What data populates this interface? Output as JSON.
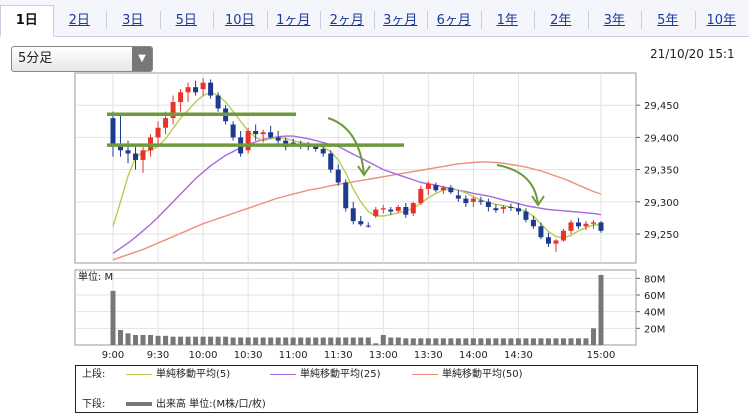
{
  "tabs": [
    "1日",
    "2日",
    "3日",
    "5日",
    "10日",
    "1ヶ月",
    "2ヶ月",
    "3ヶ月",
    "6ヶ月",
    "1年",
    "2年",
    "3年",
    "5年",
    "10年"
  ],
  "active_tab": "1日",
  "interval_select": {
    "value": "5分足",
    "arrow": "▼"
  },
  "timestamp": "21/10/20 15:1",
  "colors": {
    "up": "#e8332c",
    "down": "#1d3a8f",
    "ma5": "#b6cc52",
    "ma25": "#a869e0",
    "ma50": "#ec8f78",
    "volume": "#777777",
    "annotation_lines": "#6e9a3c",
    "annotation_arrows": "#6e9a3c"
  },
  "chart_data": [
    {
      "type": "candlestick",
      "ylim": [
        29205,
        29500
      ],
      "y_ticks": [
        "29,450",
        "29,400",
        "29,350",
        "29,300",
        "29,250"
      ],
      "x_tick_labels": [
        "9:00",
        "9:30",
        "10:00",
        "10:30",
        "11:00",
        "11:30",
        "13:00",
        "13:30",
        "14:00",
        "14:30",
        "15:00"
      ],
      "candles": [
        [
          29430,
          29440,
          29370,
          29390
        ],
        [
          29390,
          29435,
          29370,
          29380
        ],
        [
          29380,
          29395,
          29360,
          29375
        ],
        [
          29375,
          29390,
          29350,
          29365
        ],
        [
          29365,
          29385,
          29345,
          29380
        ],
        [
          29380,
          29405,
          29370,
          29400
        ],
        [
          29400,
          29425,
          29390,
          29415
        ],
        [
          29415,
          29440,
          29405,
          29430
        ],
        [
          29430,
          29465,
          29420,
          29455
        ],
        [
          29455,
          29475,
          29440,
          29470
        ],
        [
          29470,
          29485,
          29455,
          29478
        ],
        [
          29478,
          29488,
          29465,
          29470
        ],
        [
          29475,
          29492,
          29465,
          29485
        ],
        [
          29485,
          29490,
          29460,
          29465
        ],
        [
          29465,
          29470,
          29440,
          29445
        ],
        [
          29445,
          29450,
          29420,
          29425
        ],
        [
          29420,
          29425,
          29395,
          29400
        ],
        [
          29400,
          29410,
          29370,
          29375
        ],
        [
          29380,
          29415,
          29375,
          29410
        ],
        [
          29410,
          29420,
          29395,
          29405
        ],
        [
          29405,
          29412,
          29392,
          29408
        ],
        [
          29408,
          29418,
          29398,
          29400
        ],
        [
          29400,
          29410,
          29388,
          29395
        ],
        [
          29395,
          29400,
          29380,
          29385
        ],
        [
          29392,
          29398,
          29385,
          29390
        ],
        [
          29390,
          29395,
          29382,
          29388
        ],
        [
          29388,
          29393,
          29380,
          29385
        ],
        [
          29388,
          29390,
          29378,
          29382
        ],
        [
          29382,
          29388,
          29370,
          29375
        ],
        [
          29375,
          29380,
          29345,
          29350
        ],
        [
          29350,
          29358,
          29325,
          29330
        ],
        [
          29330,
          29335,
          29285,
          29290
        ],
        [
          29290,
          29300,
          29265,
          29270
        ],
        [
          29270,
          29278,
          29262,
          29265
        ],
        [
          29263,
          29268,
          29260,
          29262
        ],
        [
          29278,
          29292,
          29275,
          29288
        ],
        [
          29288,
          29295,
          29282,
          29290
        ],
        [
          29288,
          29292,
          29280,
          29285
        ],
        [
          29286,
          29295,
          29283,
          29292
        ],
        [
          29292,
          29298,
          29275,
          29280
        ],
        [
          29282,
          29300,
          29278,
          29298
        ],
        [
          29298,
          29325,
          29295,
          29320
        ],
        [
          29320,
          29332,
          29310,
          29328
        ],
        [
          29326,
          29330,
          29315,
          29318
        ],
        [
          29318,
          29325,
          29312,
          29322
        ],
        [
          29322,
          29326,
          29312,
          29315
        ],
        [
          29310,
          29318,
          29300,
          29305
        ],
        [
          29305,
          29310,
          29292,
          29298
        ],
        [
          29300,
          29308,
          29292,
          29305
        ],
        [
          29302,
          29308,
          29295,
          29300
        ],
        [
          29300,
          29305,
          29285,
          29292
        ],
        [
          29290,
          29296,
          29283,
          29287
        ],
        [
          29289,
          29295,
          29282,
          29292
        ],
        [
          29292,
          29297,
          29286,
          29291
        ],
        [
          29290,
          29298,
          29280,
          29285
        ],
        [
          29285,
          29290,
          29268,
          29272
        ],
        [
          29272,
          29278,
          29258,
          29262
        ],
        [
          29262,
          29268,
          29242,
          29245
        ],
        [
          29245,
          29252,
          29230,
          29235
        ],
        [
          29235,
          29242,
          29222,
          29240
        ],
        [
          29240,
          29258,
          29238,
          29255
        ],
        [
          29255,
          29272,
          29250,
          29268
        ],
        [
          29268,
          29275,
          29258,
          29262
        ],
        [
          29262,
          29270,
          29256,
          29266
        ],
        [
          29266,
          29272,
          29258,
          29268
        ],
        [
          29268,
          29270,
          29252,
          29255
        ]
      ],
      "ma5": [
        29262,
        29300,
        29340,
        29368,
        29378,
        29380,
        29386,
        29398,
        29414,
        29430,
        29442,
        29455,
        29465,
        29470,
        29465,
        29455,
        29440,
        29425,
        29410,
        29400,
        29395,
        29398,
        29400,
        29398,
        29395,
        29392,
        29390,
        29388,
        29385,
        29378,
        29365,
        29345,
        29320,
        29300,
        29285,
        29278,
        29278,
        29280,
        29283,
        29286,
        29290,
        29298,
        29306,
        29313,
        29318,
        29320,
        29318,
        29314,
        29308,
        29303,
        29299,
        29296,
        29294,
        29292,
        29289,
        29285,
        29278,
        29266,
        29254,
        29246,
        29244,
        29248,
        29255,
        29260,
        29264,
        29265
      ],
      "ma25": [
        29220,
        29228,
        29236,
        29245,
        29255,
        29265,
        29276,
        29288,
        29300,
        29312,
        29324,
        29336,
        29346,
        29356,
        29364,
        29372,
        29378,
        29384,
        29389,
        29393,
        29397,
        29399,
        29401,
        29402,
        29402,
        29400,
        29398,
        29395,
        29392,
        29389,
        29386,
        29380,
        29374,
        29368,
        29362,
        29356,
        29350,
        29346,
        29342,
        29338,
        29334,
        29330,
        29328,
        29326,
        29323,
        29321,
        29318,
        29316,
        29313,
        29311,
        29309,
        29306,
        29303,
        29300,
        29297,
        29294,
        29292,
        29290,
        29288,
        29287,
        29286,
        29285,
        29284,
        29283,
        29282,
        29280
      ],
      "ma50": [
        29210,
        29214,
        29218,
        29222,
        29226,
        29231,
        29236,
        29241,
        29246,
        29251,
        29256,
        29261,
        29266,
        29270,
        29274,
        29278,
        29282,
        29286,
        29290,
        29294,
        29298,
        29302,
        29306,
        29309,
        29312,
        29315,
        29318,
        29320,
        29322,
        29325,
        29327,
        29329,
        29331,
        29333,
        29335,
        29337,
        29339,
        29341,
        29343,
        29345,
        29347,
        29349,
        29351,
        29353,
        29355,
        29357,
        29359,
        29360,
        29361,
        29362,
        29362,
        29361,
        29360,
        29358,
        29356,
        29354,
        29351,
        29348,
        29344,
        29340,
        29336,
        29331,
        29326,
        29321,
        29316,
        29312
      ],
      "annotation_levels": [
        29436,
        29388
      ],
      "series": [
        {
          "name": "単純移動平均(5)",
          "key": "ma5"
        },
        {
          "name": "単純移動平均(25)",
          "key": "ma25"
        },
        {
          "name": "単純移動平均(50)",
          "key": "ma50"
        }
      ]
    },
    {
      "type": "bar",
      "ylabel": "単位: M",
      "ylim": [
        0,
        90
      ],
      "y_ticks": [
        "80M",
        "60M",
        "40M",
        "20M"
      ],
      "values": [
        65,
        18,
        14,
        12,
        12,
        12,
        11,
        11,
        10,
        10,
        10,
        10,
        10,
        10,
        10,
        10,
        9,
        9,
        9,
        9,
        9,
        9,
        9,
        9,
        9,
        9,
        9,
        9,
        9,
        9,
        9,
        9,
        9,
        9,
        9,
        2,
        12,
        9,
        9,
        8,
        8,
        8,
        8,
        8,
        8,
        8,
        8,
        8,
        8,
        8,
        8,
        8,
        8,
        8,
        8,
        8,
        8,
        8,
        8,
        8,
        8,
        8,
        8,
        8,
        20,
        84
      ],
      "series": [
        {
          "name": "出来高 単位:(M株/口/枚)"
        }
      ]
    }
  ],
  "legend": {
    "upper_label": "上段:",
    "lower_label": "下段:",
    "items": [
      "単純移動平均(5)",
      "単純移動平均(25)",
      "単純移動平均(50)"
    ],
    "volume_item": "出来高 単位:(M株/口/枚)"
  }
}
